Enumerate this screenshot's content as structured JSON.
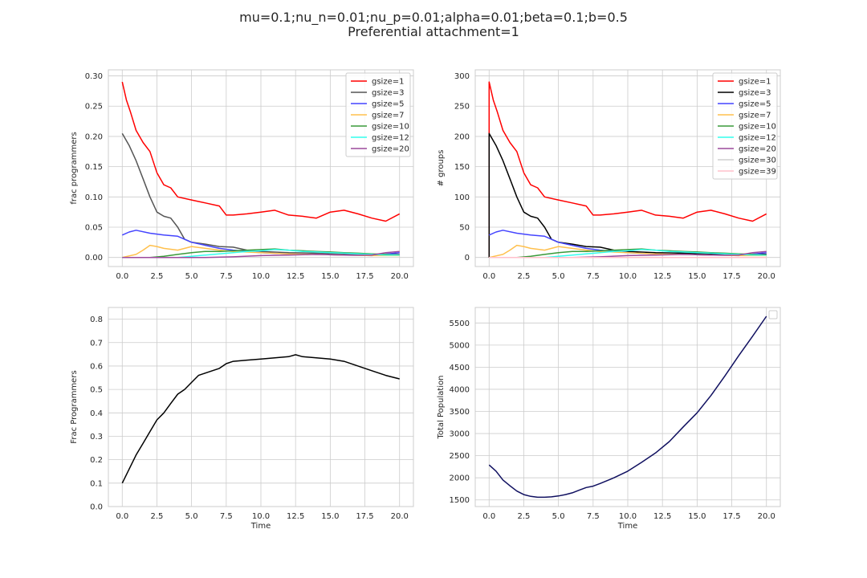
{
  "figure": {
    "title_line1": "mu=0.1;nu_n=0.01;nu_p=0.01;alpha=0.01;beta=0.1;b=0.5",
    "title_line2": "Preferential attachment=1"
  },
  "chart_data": [
    {
      "id": "top-left",
      "type": "line",
      "ylabel": "frac programmers",
      "xlabel": "",
      "xlim": [
        -1,
        21
      ],
      "ylim": [
        -0.015,
        0.31
      ],
      "xticks": [
        0.0,
        2.5,
        5.0,
        7.5,
        10.0,
        12.5,
        15.0,
        17.5,
        20.0
      ],
      "xtick_labels": [
        "0.0",
        "2.5",
        "5.0",
        "7.5",
        "10.0",
        "12.5",
        "15.0",
        "17.5",
        "20.0"
      ],
      "yticks": [
        0.0,
        0.05,
        0.1,
        0.15,
        0.2,
        0.25,
        0.3
      ],
      "ytick_labels": [
        "0.00",
        "0.05",
        "0.10",
        "0.15",
        "0.20",
        "0.25",
        "0.30"
      ],
      "grid": true,
      "legend": "top-right",
      "series": [
        {
          "name": "gsize=1",
          "color": "#ff0000",
          "x": [
            0,
            0.3,
            0.6,
            1,
            1.5,
            2,
            2.5,
            3,
            3.5,
            4,
            5,
            6,
            7,
            7.5,
            8,
            9,
            10,
            11,
            12,
            13,
            14,
            15,
            16,
            17,
            18,
            19,
            20
          ],
          "y": [
            0.29,
            0.26,
            0.24,
            0.21,
            0.19,
            0.175,
            0.14,
            0.12,
            0.115,
            0.1,
            0.095,
            0.09,
            0.085,
            0.07,
            0.07,
            0.072,
            0.075,
            0.078,
            0.07,
            0.068,
            0.065,
            0.075,
            0.078,
            0.072,
            0.065,
            0.06,
            0.072
          ]
        },
        {
          "name": "gsize=3",
          "color": "#555555",
          "x": [
            0,
            0.5,
            1,
            1.5,
            2,
            2.5,
            3,
            3.5,
            4,
            4.5,
            5,
            6,
            7,
            8,
            9,
            10,
            12,
            14,
            16,
            18,
            20
          ],
          "y": [
            0.205,
            0.185,
            0.16,
            0.13,
            0.1,
            0.075,
            0.068,
            0.065,
            0.05,
            0.03,
            0.025,
            0.022,
            0.018,
            0.017,
            0.012,
            0.01,
            0.008,
            0.007,
            0.006,
            0.005,
            0.005
          ]
        },
        {
          "name": "gsize=5",
          "color": "#4444ff",
          "x": [
            0,
            0.5,
            1,
            2,
            3,
            4,
            5,
            6,
            7,
            8,
            10,
            12,
            14,
            16,
            18,
            20
          ],
          "y": [
            0.037,
            0.042,
            0.045,
            0.04,
            0.037,
            0.035,
            0.025,
            0.02,
            0.015,
            0.012,
            0.008,
            0.006,
            0.005,
            0.004,
            0.003,
            0.008
          ]
        },
        {
          "name": "gsize=7",
          "color": "#ffc04d",
          "x": [
            0,
            1,
            1.5,
            2,
            2.5,
            3,
            4,
            5,
            6,
            7,
            8,
            10,
            12,
            14,
            16,
            18,
            20
          ],
          "y": [
            0,
            0.005,
            0.012,
            0.02,
            0.018,
            0.015,
            0.012,
            0.018,
            0.015,
            0.012,
            0.01,
            0.008,
            0.006,
            0.005,
            0.004,
            0.003,
            0.003
          ]
        },
        {
          "name": "gsize=10",
          "color": "#3a9a3a",
          "x": [
            0,
            2,
            3,
            4,
            5,
            6,
            7,
            8,
            9,
            10,
            11,
            12,
            13,
            14,
            15,
            16,
            17,
            18,
            19,
            20
          ],
          "y": [
            0,
            0,
            0.002,
            0.005,
            0.008,
            0.01,
            0.01,
            0.011,
            0.012,
            0.013,
            0.014,
            0.012,
            0.011,
            0.01,
            0.009,
            0.008,
            0.007,
            0.006,
            0.005,
            0.004
          ]
        },
        {
          "name": "gsize=12",
          "color": "#33ffee",
          "x": [
            0,
            4,
            5,
            6,
            7,
            8,
            9,
            10,
            11,
            12,
            13,
            14,
            15,
            16,
            17,
            18,
            19,
            20
          ],
          "y": [
            0,
            0,
            0.002,
            0.004,
            0.006,
            0.008,
            0.01,
            0.011,
            0.013,
            0.012,
            0.01,
            0.009,
            0.008,
            0.007,
            0.006,
            0.005,
            0.004,
            0.004
          ]
        },
        {
          "name": "gsize=20",
          "color": "#9c4a9c",
          "x": [
            0,
            6,
            8,
            10,
            12,
            14,
            16,
            18,
            19,
            20
          ],
          "y": [
            0,
            0,
            0.001,
            0.003,
            0.004,
            0.005,
            0.004,
            0.004,
            0.008,
            0.01
          ]
        }
      ]
    },
    {
      "id": "top-right",
      "type": "line",
      "ylabel": "# groups",
      "xlabel": "",
      "xlim": [
        -1,
        21
      ],
      "ylim": [
        -15,
        310
      ],
      "xticks": [
        0.0,
        2.5,
        5.0,
        7.5,
        10.0,
        12.5,
        15.0,
        17.5,
        20.0
      ],
      "xtick_labels": [
        "0.0",
        "2.5",
        "5.0",
        "7.5",
        "10.0",
        "12.5",
        "15.0",
        "17.5",
        "20.0"
      ],
      "yticks": [
        0,
        50,
        100,
        150,
        200,
        250,
        300
      ],
      "ytick_labels": [
        "0",
        "50",
        "100",
        "150",
        "200",
        "250",
        "300"
      ],
      "grid": true,
      "legend": "top-right",
      "series": [
        {
          "name": "gsize=1",
          "color": "#ff0000",
          "x": [
            0,
            0,
            0.3,
            0.6,
            1,
            1.5,
            2,
            2.5,
            3,
            3.5,
            4,
            5,
            6,
            7,
            7.5,
            8,
            9,
            10,
            11,
            12,
            13,
            14,
            15,
            16,
            17,
            18,
            19,
            20
          ],
          "y": [
            0,
            290,
            260,
            240,
            210,
            190,
            175,
            140,
            120,
            115,
            100,
            95,
            90,
            85,
            70,
            70,
            72,
            75,
            78,
            70,
            68,
            65,
            75,
            78,
            72,
            65,
            60,
            72
          ]
        },
        {
          "name": "gsize=3",
          "color": "#000000",
          "x": [
            0,
            0,
            0.5,
            1,
            1.5,
            2,
            2.5,
            3,
            3.5,
            4,
            4.5,
            5,
            6,
            7,
            8,
            9,
            10,
            12,
            14,
            16,
            18,
            20
          ],
          "y": [
            0,
            205,
            185,
            160,
            130,
            100,
            75,
            68,
            65,
            50,
            30,
            25,
            22,
            18,
            17,
            12,
            10,
            8,
            7,
            6,
            5,
            5
          ]
        },
        {
          "name": "gsize=5",
          "color": "#4444ff",
          "x": [
            0,
            0.5,
            1,
            2,
            3,
            4,
            5,
            6,
            7,
            8,
            10,
            12,
            14,
            16,
            18,
            20
          ],
          "y": [
            37,
            42,
            45,
            40,
            37,
            35,
            25,
            20,
            15,
            12,
            8,
            6,
            5,
            4,
            3,
            8
          ]
        },
        {
          "name": "gsize=7",
          "color": "#ffc04d",
          "x": [
            0,
            1,
            1.5,
            2,
            2.5,
            3,
            4,
            5,
            6,
            7,
            8,
            10,
            12,
            14,
            16,
            18,
            20
          ],
          "y": [
            0,
            5,
            12,
            20,
            18,
            15,
            12,
            18,
            15,
            12,
            10,
            8,
            6,
            5,
            4,
            3,
            3
          ]
        },
        {
          "name": "gsize=10",
          "color": "#3a9a3a",
          "x": [
            0,
            2,
            3,
            4,
            5,
            6,
            7,
            8,
            9,
            10,
            11,
            12,
            13,
            14,
            15,
            16,
            17,
            18,
            19,
            20
          ],
          "y": [
            0,
            0,
            2,
            5,
            8,
            10,
            10,
            11,
            12,
            13,
            14,
            12,
            11,
            10,
            9,
            8,
            7,
            6,
            5,
            4
          ]
        },
        {
          "name": "gsize=12",
          "color": "#33ffee",
          "x": [
            0,
            4,
            5,
            6,
            7,
            8,
            9,
            10,
            11,
            12,
            13,
            14,
            15,
            16,
            17,
            18,
            19,
            20
          ],
          "y": [
            0,
            0,
            2,
            4,
            6,
            8,
            10,
            11,
            13,
            12,
            10,
            9,
            8,
            7,
            6,
            5,
            4,
            4
          ]
        },
        {
          "name": "gsize=20",
          "color": "#9c4a9c",
          "x": [
            0,
            6,
            8,
            10,
            12,
            14,
            16,
            18,
            19,
            20
          ],
          "y": [
            0,
            0,
            1,
            3,
            4,
            5,
            4,
            4,
            8,
            10
          ]
        },
        {
          "name": "gsize=30",
          "color": "#cfcfcf",
          "x": [
            0,
            20
          ],
          "y": [
            0,
            0
          ]
        },
        {
          "name": "gsize=39",
          "color": "#ffc0cb",
          "x": [
            0,
            20
          ],
          "y": [
            0,
            0
          ]
        }
      ]
    },
    {
      "id": "bottom-left",
      "type": "line",
      "ylabel": "Frac Programmers",
      "xlabel": "Time",
      "xlim": [
        -1,
        21
      ],
      "ylim": [
        0,
        0.85
      ],
      "xticks": [
        0.0,
        2.5,
        5.0,
        7.5,
        10.0,
        12.5,
        15.0,
        17.5,
        20.0
      ],
      "xtick_labels": [
        "0.0",
        "2.5",
        "5.0",
        "7.5",
        "10.0",
        "12.5",
        "15.0",
        "17.5",
        "20.0"
      ],
      "yticks": [
        0.0,
        0.1,
        0.2,
        0.3,
        0.4,
        0.5,
        0.6,
        0.7,
        0.8
      ],
      "ytick_labels": [
        "0.0",
        "0.1",
        "0.2",
        "0.3",
        "0.4",
        "0.5",
        "0.6",
        "0.7",
        "0.8"
      ],
      "grid": true,
      "series": [
        {
          "color": "#000000",
          "x": [
            0,
            0.5,
            1,
            1.5,
            2,
            2.5,
            3,
            3.5,
            4,
            4.5,
            5,
            5.5,
            6,
            6.5,
            7,
            7.5,
            8,
            9,
            10,
            11,
            12,
            12.5,
            13,
            14,
            15,
            16,
            17,
            18,
            19,
            20
          ],
          "y": [
            0.1,
            0.16,
            0.22,
            0.27,
            0.32,
            0.37,
            0.4,
            0.44,
            0.48,
            0.5,
            0.53,
            0.56,
            0.57,
            0.58,
            0.59,
            0.61,
            0.62,
            0.625,
            0.63,
            0.635,
            0.64,
            0.648,
            0.64,
            0.635,
            0.63,
            0.62,
            0.6,
            0.58,
            0.56,
            0.545
          ]
        }
      ]
    },
    {
      "id": "bottom-right",
      "type": "line",
      "ylabel": "Total Population",
      "xlabel": "Time",
      "xlim": [
        -1,
        21
      ],
      "ylim": [
        1350,
        5850
      ],
      "xticks": [
        0.0,
        2.5,
        5.0,
        7.5,
        10.0,
        12.5,
        15.0,
        17.5,
        20.0
      ],
      "xtick_labels": [
        "0.0",
        "2.5",
        "5.0",
        "7.5",
        "10.0",
        "12.5",
        "15.0",
        "17.5",
        "20.0"
      ],
      "yticks": [
        1500,
        2000,
        2500,
        3000,
        3500,
        4000,
        4500,
        5000,
        5500
      ],
      "ytick_labels": [
        "1500",
        "2000",
        "2500",
        "3000",
        "3500",
        "4000",
        "4500",
        "5000",
        "5500"
      ],
      "grid": true,
      "legend": "top-right",
      "series": [
        {
          "color": "#101060",
          "x": [
            0,
            0.5,
            1,
            1.5,
            2,
            2.5,
            3,
            3.5,
            4,
            4.5,
            5,
            5.5,
            6,
            6.5,
            7,
            7.5,
            8,
            9,
            10,
            11,
            12,
            13,
            14,
            15,
            16,
            17,
            18,
            19,
            20
          ],
          "y": [
            2290,
            2150,
            1950,
            1820,
            1700,
            1620,
            1580,
            1560,
            1560,
            1570,
            1590,
            1620,
            1660,
            1720,
            1780,
            1810,
            1870,
            2000,
            2150,
            2350,
            2560,
            2820,
            3150,
            3470,
            3860,
            4300,
            4760,
            5200,
            5650
          ]
        }
      ]
    }
  ]
}
